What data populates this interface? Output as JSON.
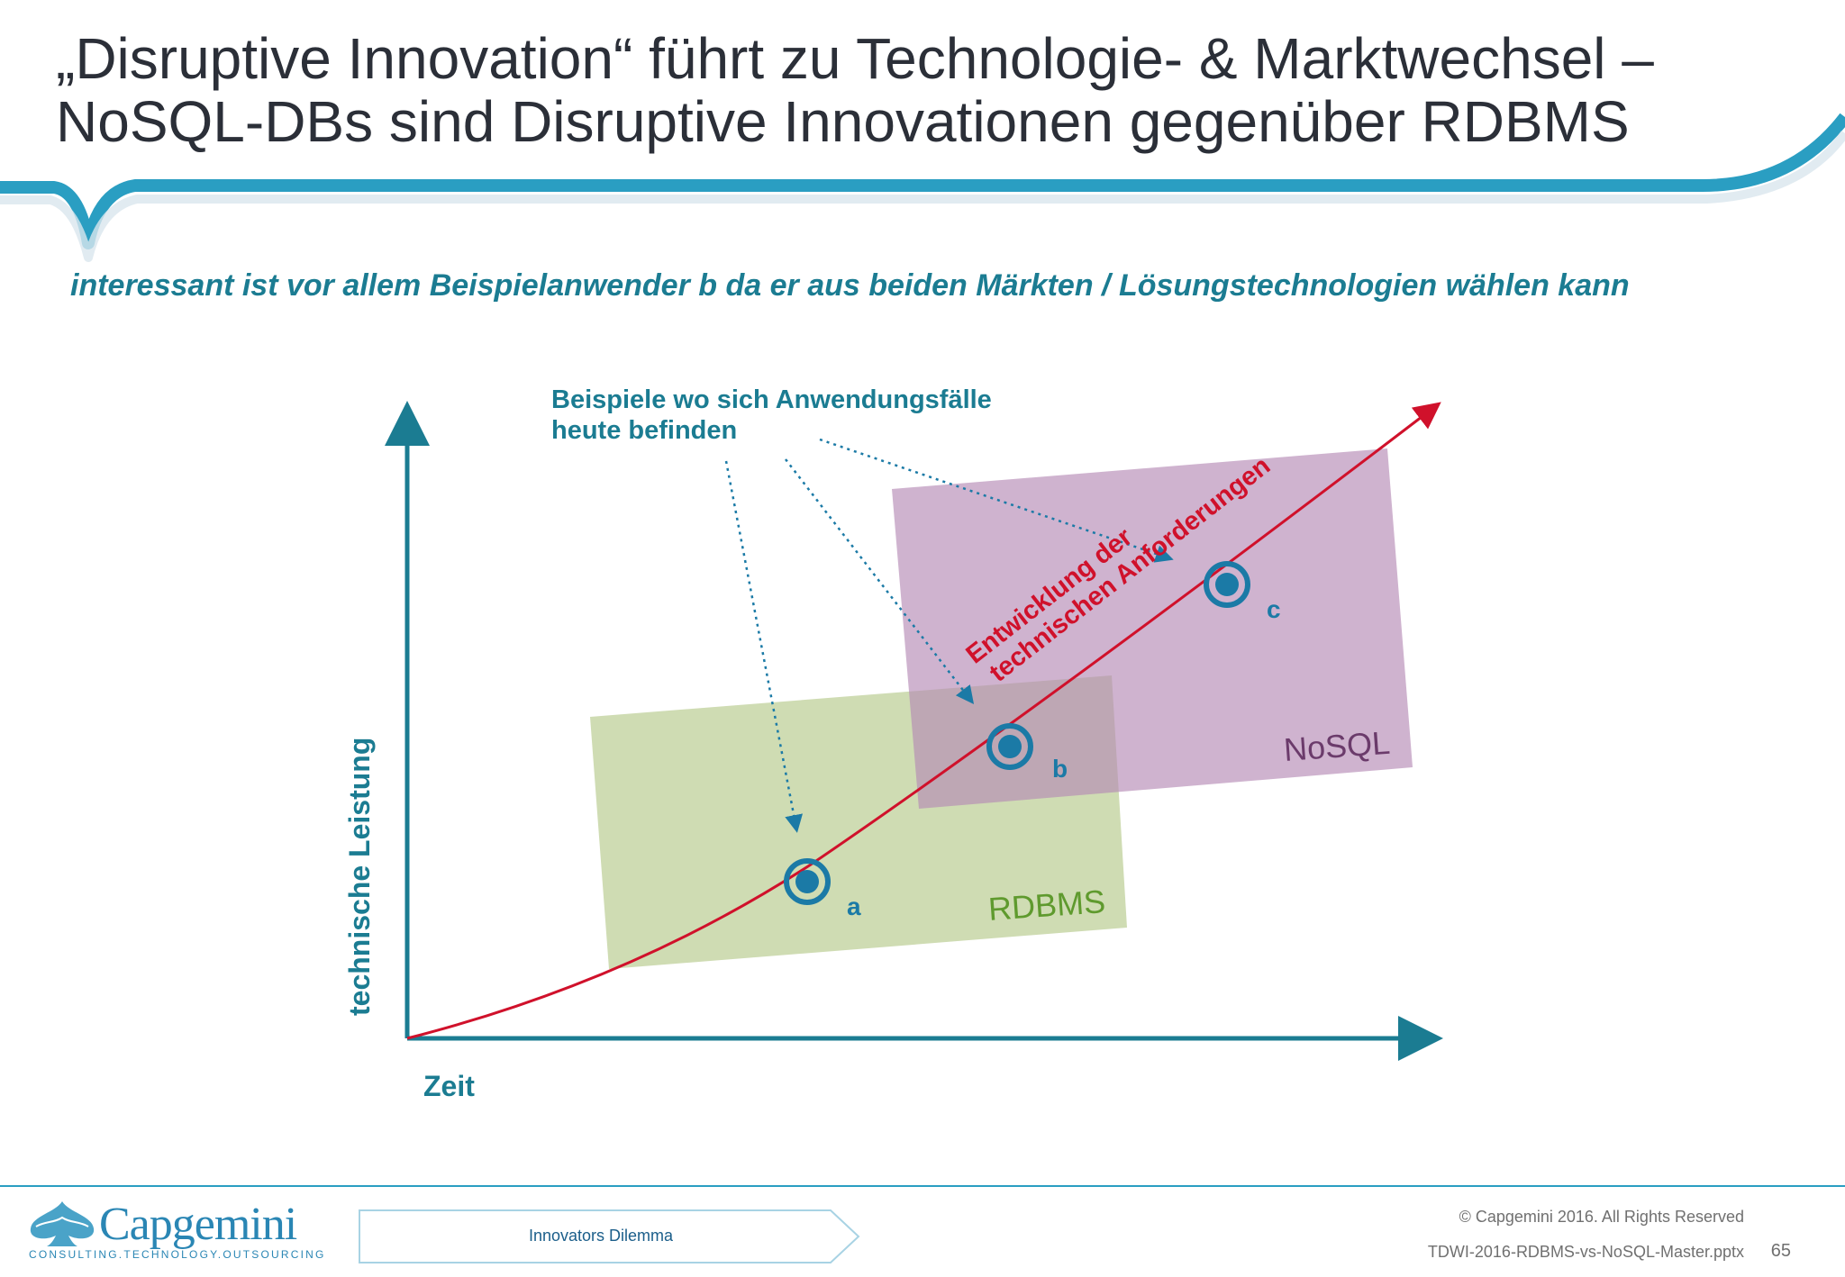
{
  "slide": {
    "title_line1": "„Disruptive Innovation“ führt zu Technologie- & Marktwechsel –",
    "title_line2": "NoSQL-DBs sind Disruptive Innovationen gegenüber RDBMS",
    "subtitle": "interessant ist vor allem Beispielanwender b da er aus beiden Märkten / Lösungstechnologien wählen kann"
  },
  "diagram": {
    "y_axis_label": "technische Leistung",
    "x_axis_label": "Zeit",
    "callout_line1": "Beispiele wo sich Anwendungsfälle",
    "callout_line2": "heute befinden",
    "curve_label_line1": "Entwicklung der",
    "curve_label_line2": "technischen Anforderungen",
    "rdbms_label": "RDBMS",
    "nosql_label": "NoSQL",
    "point_a": "a",
    "point_b": "b",
    "point_c": "c",
    "colors": {
      "axis": "#1b7c92",
      "curve": "#d0112b",
      "rdbms_fill": "#b5c98a",
      "nosql_fill": "#b58ab5",
      "rdbms_text": "#5f9a2e",
      "nosql_text": "#6b3b6b",
      "target": "#1b7aa6"
    }
  },
  "footer": {
    "logo_word": "Capgemini",
    "logo_tagline": "CONSULTING.TECHNOLOGY.OUTSOURCING",
    "tab_label": "Innovators Dilemma",
    "copyright": "© Capgemini 2016. All Rights Reserved",
    "filename": "TDWI-2016-RDBMS-vs-NoSQL-Master.pptx",
    "page_number": "65"
  }
}
